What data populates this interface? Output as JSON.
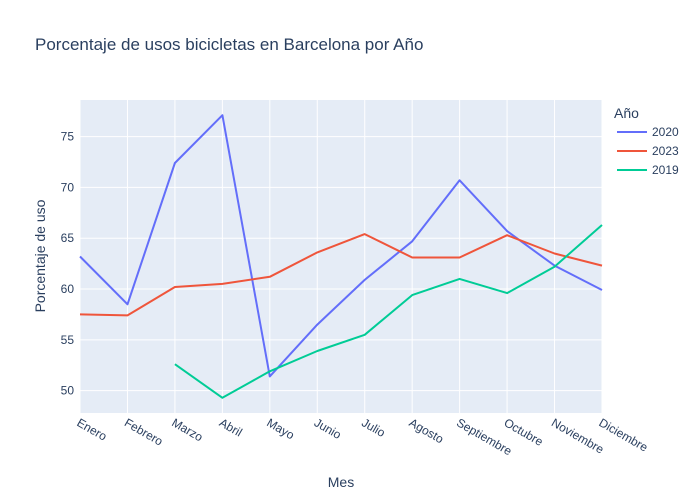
{
  "chart_data": {
    "type": "line",
    "title": "Porcentaje de usos bicicletas en Barcelona por Año",
    "xlabel": "Mes",
    "ylabel": "Porcentaje de uso",
    "categories": [
      "Enero",
      "Febrero",
      "Marzo",
      "Abril",
      "Mayo",
      "Junio",
      "Julio",
      "Agosto",
      "Septiembre",
      "Octubre",
      "Noviembre",
      "Diciembre"
    ],
    "ylim": [
      47.8,
      78.6
    ],
    "yticks": [
      50,
      55,
      60,
      65,
      70,
      75
    ],
    "grid": true,
    "legend_title": "Año",
    "legend_position": "top-right",
    "series": [
      {
        "name": "2020",
        "color": "#636efa",
        "values": [
          63.2,
          58.5,
          72.4,
          77.1,
          51.4,
          56.5,
          60.9,
          64.7,
          70.7,
          65.7,
          62.3,
          59.9
        ]
      },
      {
        "name": "2023",
        "color": "#ef553b",
        "values": [
          57.5,
          57.4,
          60.2,
          60.5,
          61.2,
          63.6,
          65.4,
          63.1,
          63.1,
          65.3,
          63.5,
          62.3
        ]
      },
      {
        "name": "2019",
        "color": "#00cc96",
        "values": [
          null,
          null,
          52.6,
          49.3,
          51.9,
          53.9,
          55.5,
          59.4,
          61.0,
          59.6,
          62.2,
          66.3
        ]
      }
    ]
  }
}
